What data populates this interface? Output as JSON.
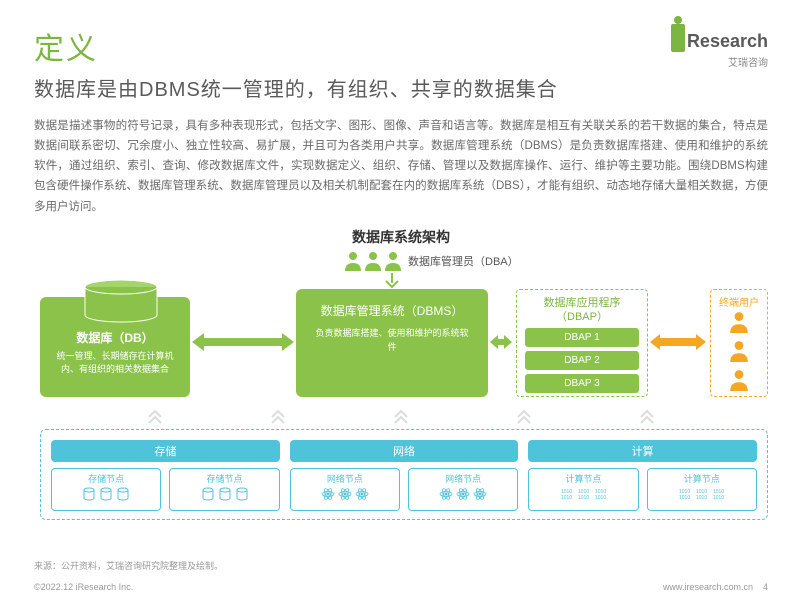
{
  "colors": {
    "accent": "#7cb542",
    "green": "#8bc34a",
    "cyan": "#4fc3d9",
    "orange": "#f5a623",
    "text": "#5a5a5a",
    "body": "#6a6a6a"
  },
  "header": {
    "title": "定义",
    "logo_text": "Research",
    "logo_sub": "艾瑞咨询"
  },
  "subtitle": "数据库是由DBMS统一管理的，有组织、共享的数据集合",
  "body": "数据是描述事物的符号记录，具有多种表现形式，包括文字、图形、图像、声音和语言等。数据库是相互有关联关系的若干数据的集合，特点是数据间联系密切、冗余度小、独立性较高、易扩展，并且可为各类用户共享。数据库管理系统（DBMS）是负责数据库搭建、使用和维护的系统软件，通过组织、索引、查询、修改数据库文件，实现数据定义、组织、存储、管理以及数据库操作、运行、维护等主要功能。围绕DBMS构建包含硬件操作系统、数据库管理系统、数据库管理员以及相关机制配套在内的数据库系统（DBS），才能有组织、动态地存储大量相关数据，方便多用户访问。",
  "diagram": {
    "title": "数据库系统架构",
    "dba_label": "数据库管理员（DBA）",
    "db": {
      "title": "数据库（DB）",
      "desc": "统一管理、长期储存在计算机内、有组织的相关数据集合"
    },
    "dbms": {
      "title": "数据库管理系统（DBMS）",
      "desc": "负责数据库搭建、使用和维护的系统软件"
    },
    "dbap": {
      "title": "数据库应用程序（DBAP）",
      "items": [
        "DBAP 1",
        "DBAP 2",
        "DBAP 3"
      ]
    },
    "users": {
      "title": "终端用户"
    },
    "infra": {
      "groups": [
        {
          "label": "存储",
          "nodes": [
            "存储节点",
            "存储节点"
          ],
          "icon": "cyl"
        },
        {
          "label": "网络",
          "nodes": [
            "网络节点",
            "网络节点"
          ],
          "icon": "atom"
        },
        {
          "label": "计算",
          "nodes": [
            "计算节点",
            "计算节点"
          ],
          "icon": "bin"
        }
      ]
    }
  },
  "source": "来源：公开资料，艾瑞咨询研究院整理及绘制。",
  "footer": {
    "left": "©2022.12 iResearch Inc.",
    "right": "www.iresearch.com.cn",
    "page": "4"
  }
}
